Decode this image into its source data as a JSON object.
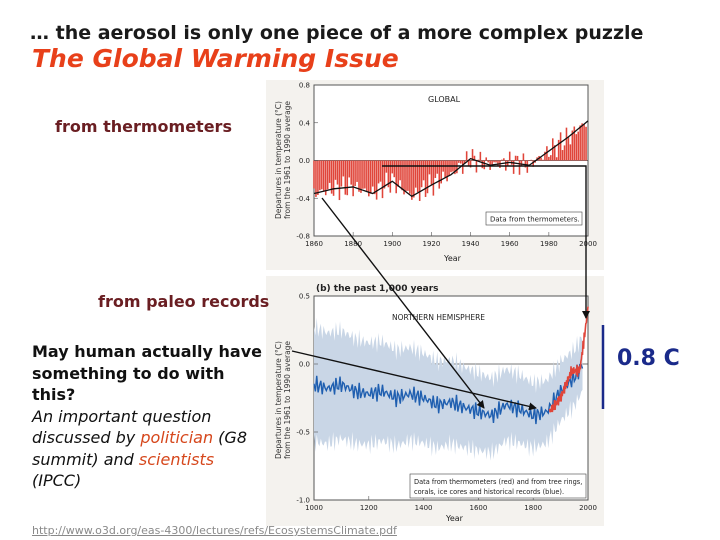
{
  "slide": {
    "headline": "… the aerosol is only one piece of a more complex puzzle",
    "title": "The Global Warming Issue",
    "callout_thermometers": "from thermometers",
    "callout_paleo": "from paleo records",
    "question_bold": "May human actually have something to do with this?",
    "question_italic_1": "An important question discussed by ",
    "question_politician": "politician",
    "question_italic_2": " (G8 summit) and ",
    "question_scientists": "scientists",
    "question_italic_3": " (IPCC)",
    "anomaly_label": "0.8 C",
    "url": "http://www.o3d.org/eas-4300/lectures/refs/EcosystemsClimate.pdf"
  },
  "colors": {
    "title": "#e8401a",
    "callout": "#6a1e22",
    "anomaly": "#1a2a8a",
    "thermometer_bars": "#e0453a",
    "paleo_line": "#1f5fb0",
    "paleo_band": "#c9d6e6"
  },
  "chart_data": [
    {
      "type": "bar",
      "panel_label": "GLOBAL",
      "ylabel_line1": "Departures in temperature (°C)",
      "ylabel_line2": "from the 1961 to 1990 average",
      "xlabel": "Year",
      "legend": "Data from thermometers.",
      "xlim": [
        1860,
        2000
      ],
      "ylim": [
        -0.8,
        0.8
      ],
      "xticks": [
        1860,
        1880,
        1900,
        1920,
        1940,
        1960,
        1980,
        2000
      ],
      "yticks": [
        -0.8,
        -0.4,
        0.0,
        0.4,
        0.8
      ],
      "ytick_labels": [
        "-0.8",
        "-0.4",
        "0.0",
        "0.4",
        "0.8"
      ],
      "series": [
        {
          "values": {
            "x": [
              1860,
              1870,
              1880,
              1890,
              1900,
              1910,
              1920,
              1930,
              1940,
              1950,
              1960,
              1970,
              1980,
              1990,
              2000
            ],
            "y": [
              -0.35,
              -0.3,
              -0.28,
              -0.35,
              -0.22,
              -0.38,
              -0.26,
              -0.15,
              0.02,
              -0.05,
              -0.02,
              -0.05,
              0.1,
              0.25,
              0.42
            ]
          }
        }
      ],
      "smoothed": {
        "x": [
          1860,
          1870,
          1880,
          1890,
          1900,
          1910,
          1920,
          1930,
          1940,
          1950,
          1960,
          1970,
          1980,
          1990,
          2000
        ],
        "y": [
          -0.35,
          -0.3,
          -0.28,
          -0.35,
          -0.22,
          -0.38,
          -0.26,
          -0.15,
          0.02,
          -0.05,
          -0.02,
          -0.05,
          0.1,
          0.25,
          0.42
        ]
      }
    },
    {
      "type": "line",
      "panel_title": "(b) the past 1,000 years",
      "panel_label": "NORTHERN HEMISPHERE",
      "ylabel_line1": "Departures in temperature (°C)",
      "ylabel_line2": "from the 1961 to 1990 average",
      "xlabel": "Year",
      "legend_line1": "Data from thermometers (red) and from tree rings,",
      "legend_line2": "corals, ice cores and historical records (blue).",
      "xlim": [
        1000,
        2000
      ],
      "ylim": [
        -1.0,
        0.5
      ],
      "xticks": [
        1000,
        1200,
        1400,
        1600,
        1800,
        2000
      ],
      "yticks": [
        -1.0,
        -0.5,
        0.0,
        0.5
      ],
      "ytick_labels": [
        "-1.0",
        "-0.5",
        "0.0",
        "0.5"
      ],
      "paleo": {
        "x": [
          1000,
          1050,
          1100,
          1150,
          1200,
          1250,
          1300,
          1350,
          1400,
          1450,
          1500,
          1550,
          1600,
          1650,
          1700,
          1750,
          1800,
          1850,
          1900,
          1950,
          1980
        ],
        "y": [
          -0.15,
          -0.18,
          -0.15,
          -0.2,
          -0.22,
          -0.2,
          -0.25,
          -0.22,
          -0.25,
          -0.3,
          -0.28,
          -0.32,
          -0.35,
          -0.38,
          -0.3,
          -0.33,
          -0.38,
          -0.35,
          -0.2,
          -0.1,
          0.0
        ]
      },
      "thermometers": {
        "x": [
          1860,
          1900,
          1940,
          1970,
          1990,
          2000
        ],
        "y": [
          -0.35,
          -0.25,
          -0.05,
          -0.05,
          0.25,
          0.42
        ]
      }
    }
  ]
}
